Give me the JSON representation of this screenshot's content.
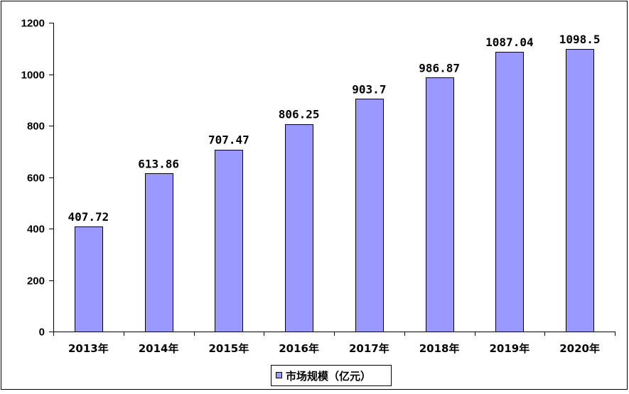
{
  "chart_data": {
    "type": "bar",
    "categories": [
      "2013年",
      "2014年",
      "2015年",
      "2016年",
      "2017年",
      "2018年",
      "2019年",
      "2020年"
    ],
    "series": [
      {
        "name": "市场规模（亿元）",
        "values": [
          407.72,
          613.86,
          707.47,
          806.25,
          903.7,
          986.87,
          1087.04,
          1098.5
        ],
        "value_labels": [
          "407.72",
          "613.86",
          "707.47",
          "806.25",
          "903.7",
          "986.87",
          "1087.04",
          "1098.5"
        ],
        "color": "#9999ff"
      }
    ],
    "title": "",
    "xlabel": "",
    "ylabel": "",
    "ylim": [
      0,
      1200
    ],
    "yticks": [
      0,
      200,
      400,
      600,
      800,
      1000,
      1200
    ],
    "grid": false,
    "legend": "bottom-center"
  }
}
